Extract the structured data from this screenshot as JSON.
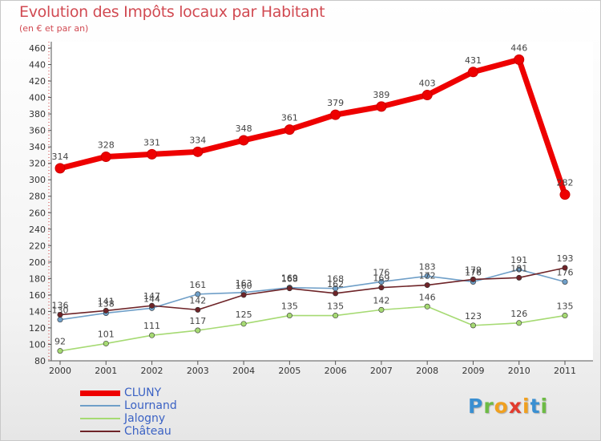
{
  "page": {
    "title": "Evolution des Impôts locaux par Habitant",
    "subtitle": "(en € et par an)"
  },
  "logo": {
    "letters": [
      "P",
      "r",
      "o",
      "x",
      "i",
      "t",
      "i"
    ],
    "colors": [
      "#3a8fd1",
      "#6dbb45",
      "#f0a020",
      "#e23b2e",
      "#f0a020",
      "#3a8fd1",
      "#6dbb45"
    ]
  },
  "chart_data": {
    "type": "line",
    "title": "Evolution des Impôts locaux par Habitant",
    "subtitle": "(en € et par an)",
    "xlabel": "",
    "ylabel": "",
    "ylim": [
      80,
      460
    ],
    "ytick_step": 20,
    "grid": false,
    "legend_position": "bottom-left",
    "x": [
      2000,
      2001,
      2002,
      2003,
      2004,
      2005,
      2006,
      2007,
      2008,
      2009,
      2010,
      2011
    ],
    "series": [
      {
        "name": "CLUNY",
        "color": "#ee0000",
        "highlight": true,
        "values": [
          314,
          328,
          331,
          334,
          348,
          361,
          379,
          389,
          403,
          431,
          446,
          282
        ]
      },
      {
        "name": "Lournand",
        "color": "#6f9fc8",
        "values": [
          130,
          138,
          144,
          161,
          163,
          169,
          168,
          176,
          183,
          176,
          191,
          176
        ]
      },
      {
        "name": "Jalogny",
        "color": "#a6da73",
        "values": [
          92,
          101,
          111,
          117,
          125,
          135,
          135,
          142,
          146,
          123,
          126,
          135
        ]
      },
      {
        "name": "Château",
        "color": "#6e2428",
        "values": [
          136,
          141,
          147,
          142,
          160,
          168,
          162,
          169,
          172,
          179,
          181,
          193
        ]
      }
    ]
  }
}
